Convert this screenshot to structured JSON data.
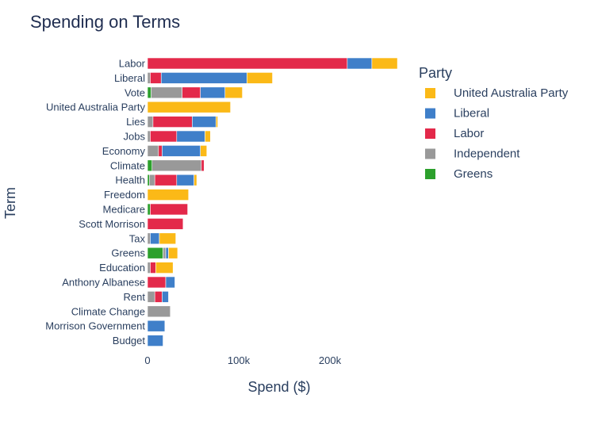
{
  "chart_data": {
    "type": "bar",
    "orientation": "horizontal",
    "stacked": true,
    "title": "Spending on Terms",
    "xlabel": "Spend ($)",
    "ylabel": "Term",
    "xlim": [
      0,
      270000
    ],
    "xticks": [
      {
        "value": 0,
        "label": "0"
      },
      {
        "value": 100000,
        "label": "100k"
      },
      {
        "value": 200000,
        "label": "200k"
      }
    ],
    "categories": [
      "Labor",
      "Liberal",
      "Vote",
      "United Australia Party",
      "Lies",
      "Jobs",
      "Economy",
      "Climate",
      "Health",
      "Freedom",
      "Medicare",
      "Scott Morrison",
      "Tax",
      "Greens",
      "Education",
      "Anthony Albanese",
      "Rent",
      "Climate Change",
      "Morrison Government",
      "Budget"
    ],
    "series": [
      {
        "name": "Greens",
        "color": "#2ca02c",
        "values": [
          0,
          0,
          4000,
          0,
          0,
          0,
          0,
          5000,
          2000,
          0,
          3000,
          0,
          0,
          17000,
          0,
          0,
          0,
          0,
          0,
          0
        ]
      },
      {
        "name": "Independent",
        "color": "#999999",
        "values": [
          0,
          3000,
          34000,
          0,
          6000,
          3000,
          12000,
          54000,
          6000,
          0,
          0,
          0,
          3000,
          3000,
          3000,
          0,
          8000,
          25000,
          0,
          0
        ]
      },
      {
        "name": "Labor",
        "color": "#e3294a",
        "values": [
          219000,
          12000,
          20000,
          0,
          43000,
          29000,
          4000,
          3000,
          24000,
          0,
          41000,
          39000,
          0,
          0,
          6000,
          20000,
          8000,
          0,
          0,
          0
        ]
      },
      {
        "name": "Liberal",
        "color": "#3f7fc9",
        "values": [
          27000,
          94000,
          27000,
          0,
          26000,
          31000,
          42000,
          0,
          19000,
          0,
          0,
          0,
          10000,
          3000,
          0,
          10000,
          7000,
          0,
          19000,
          17000
        ]
      },
      {
        "name": "United Australia Party",
        "color": "#fbb917",
        "values": [
          28000,
          28000,
          19000,
          91000,
          2000,
          6000,
          7000,
          0,
          3000,
          45000,
          0,
          0,
          18000,
          10000,
          19000,
          0,
          0,
          0,
          0,
          0
        ]
      }
    ],
    "legend": {
      "title": "Party",
      "position": "right",
      "order": [
        "United Australia Party",
        "Liberal",
        "Labor",
        "Independent",
        "Greens"
      ]
    }
  }
}
